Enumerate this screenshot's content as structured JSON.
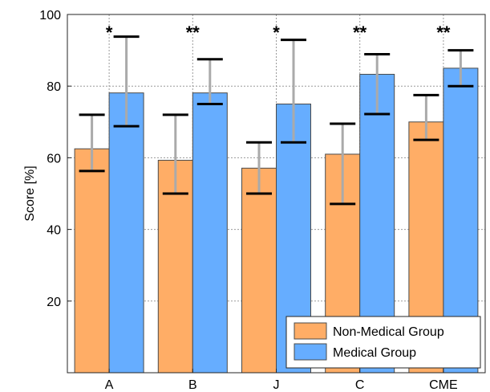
{
  "chart_data": {
    "type": "bar",
    "categories": [
      "A",
      "B",
      "J",
      "C",
      "CME"
    ],
    "series": [
      {
        "name": "Non-Medical Group",
        "color": "#FFAD66",
        "values": [
          62.5,
          59.3,
          57.1,
          61.0,
          70.0
        ],
        "error_low": [
          56.3,
          50.0,
          50.0,
          47.1,
          65.0
        ],
        "error_high": [
          72.0,
          72.0,
          64.3,
          69.5,
          77.5
        ]
      },
      {
        "name": "Medical Group",
        "color": "#66ADFF",
        "values": [
          78.1,
          78.1,
          75.0,
          83.3,
          85.0
        ],
        "error_low": [
          68.8,
          75.0,
          64.3,
          72.2,
          80.0
        ],
        "error_high": [
          93.8,
          87.5,
          92.9,
          88.9,
          90.0
        ]
      }
    ],
    "significance": [
      "*",
      "**",
      "*",
      "**",
      "**"
    ],
    "ylabel": "Score [%]",
    "xlabel": "",
    "title": "",
    "ylim": [
      0,
      100
    ],
    "yticks": [
      20,
      40,
      60,
      80,
      100
    ],
    "grid": true,
    "legend_position": "bottom-right",
    "errorbar_color": "#AAAAAA",
    "errorcap_color": "#000000"
  }
}
